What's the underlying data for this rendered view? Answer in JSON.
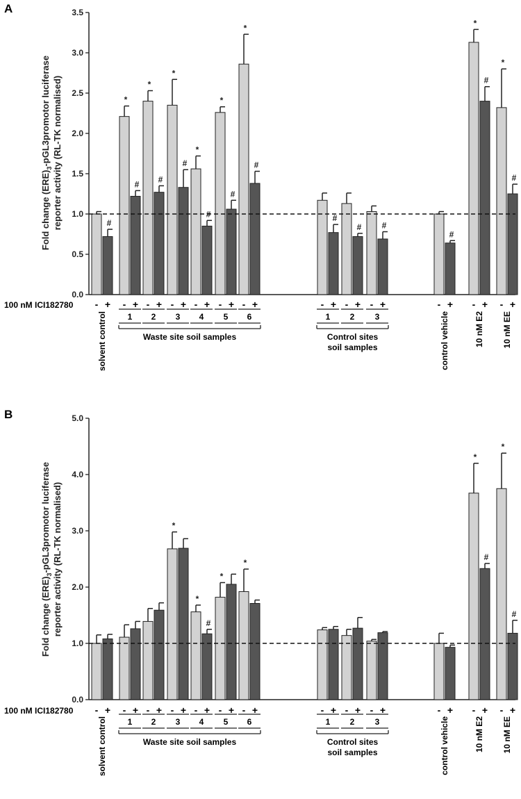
{
  "colors": {
    "light": "#d2d2d2",
    "dark": "#555555",
    "line": "#222222"
  },
  "chart_data": [
    {
      "type": "bar",
      "panel_label": "A",
      "ylabel_line1_pre": "Fold change (ERE)",
      "ylabel_sub": "3",
      "ylabel_line1_post": "-pGL3promotor luciferase",
      "ylabel_line2": "reporter  activity (RL-TK normalised)",
      "ylim": [
        0,
        3.5
      ],
      "ticks": [
        "0.0",
        "0.5",
        "1.0",
        "1.5",
        "2.0",
        "2.5",
        "3.0",
        "3.5"
      ],
      "tick_values": [
        0,
        0.5,
        1,
        1.5,
        2,
        2.5,
        3,
        3.5
      ],
      "reference_line": 1.0,
      "treatment_label": "100 nM ICI182780",
      "legend_minus": "-",
      "legend_plus": "+",
      "samples": [
        {
          "label": "solvent control",
          "minus": 1.0,
          "minus_err": 0.03,
          "plus": 0.72,
          "plus_err": 0.09,
          "minus_mark": "",
          "plus_mark": "#"
        },
        {
          "label": "1",
          "minus": 2.21,
          "minus_err": 0.13,
          "plus": 1.22,
          "plus_err": 0.07,
          "minus_mark": "*",
          "plus_mark": "#"
        },
        {
          "label": "2",
          "minus": 2.4,
          "minus_err": 0.13,
          "plus": 1.27,
          "plus_err": 0.08,
          "minus_mark": "*",
          "plus_mark": "#"
        },
        {
          "label": "3",
          "minus": 2.35,
          "minus_err": 0.32,
          "plus": 1.33,
          "plus_err": 0.22,
          "minus_mark": "*",
          "plus_mark": "#"
        },
        {
          "label": "4",
          "minus": 1.56,
          "minus_err": 0.16,
          "plus": 0.85,
          "plus_err": 0.07,
          "minus_mark": "*",
          "plus_mark": "#"
        },
        {
          "label": "5",
          "minus": 2.26,
          "minus_err": 0.07,
          "plus": 1.06,
          "plus_err": 0.11,
          "minus_mark": "*",
          "plus_mark": "#"
        },
        {
          "label": "6",
          "minus": 2.86,
          "minus_err": 0.37,
          "plus": 1.38,
          "plus_err": 0.15,
          "minus_mark": "*",
          "plus_mark": "#"
        },
        {
          "label": "1",
          "minus": 1.17,
          "minus_err": 0.09,
          "plus": 0.77,
          "plus_err": 0.1,
          "minus_mark": "",
          "plus_mark": "#"
        },
        {
          "label": "2",
          "minus": 1.13,
          "minus_err": 0.13,
          "plus": 0.72,
          "plus_err": 0.04,
          "minus_mark": "",
          "plus_mark": "#"
        },
        {
          "label": "3",
          "minus": 1.03,
          "minus_err": 0.07,
          "plus": 0.69,
          "plus_err": 0.09,
          "minus_mark": "",
          "plus_mark": "#"
        },
        {
          "label": "control vehicle",
          "minus": 1.0,
          "minus_err": 0.03,
          "plus": 0.64,
          "plus_err": 0.03,
          "minus_mark": "",
          "plus_mark": "#"
        },
        {
          "label": "10 nM E2",
          "minus": 3.13,
          "minus_err": 0.16,
          "plus": 2.4,
          "plus_err": 0.18,
          "minus_mark": "*",
          "plus_mark": "#"
        },
        {
          "label": "10 nM EE",
          "minus": 2.32,
          "minus_err": 0.48,
          "plus": 1.25,
          "plus_err": 0.12,
          "minus_mark": "*",
          "plus_mark": "#"
        }
      ],
      "groups": [
        {
          "label": "Waste site soil samples"
        },
        {
          "label_line1": "Control sites",
          "label_line2": "soil samples"
        }
      ]
    },
    {
      "type": "bar",
      "panel_label": "B",
      "ylabel_line1_pre": "Fold change (ERE)",
      "ylabel_sub": "3",
      "ylabel_line1_post": "-pGL3promotor luciferase",
      "ylabel_line2": "reporter  activity (RL-TK normalised)",
      "ylim": [
        0,
        5
      ],
      "ticks": [
        "0.0",
        "1.0",
        "2.0",
        "3.0",
        "4.0",
        "5.0"
      ],
      "tick_values": [
        0,
        1,
        2,
        3,
        4,
        5
      ],
      "reference_line": 1.0,
      "treatment_label": "100 nM ICI182780",
      "legend_minus": "-",
      "legend_plus": "+",
      "samples": [
        {
          "label": "solvent control",
          "minus": 1.0,
          "minus_err": 0.15,
          "plus": 1.08,
          "plus_err": 0.08,
          "minus_mark": "",
          "plus_mark": ""
        },
        {
          "label": "1",
          "minus": 1.11,
          "minus_err": 0.22,
          "plus": 1.26,
          "plus_err": 0.13,
          "minus_mark": "",
          "plus_mark": ""
        },
        {
          "label": "2",
          "minus": 1.39,
          "minus_err": 0.23,
          "plus": 1.59,
          "plus_err": 0.13,
          "minus_mark": "",
          "plus_mark": ""
        },
        {
          "label": "3",
          "minus": 2.68,
          "minus_err": 0.3,
          "plus": 2.69,
          "plus_err": 0.17,
          "minus_mark": "*",
          "plus_mark": ""
        },
        {
          "label": "4",
          "minus": 1.56,
          "minus_err": 0.12,
          "plus": 1.17,
          "plus_err": 0.08,
          "minus_mark": "*",
          "plus_mark": "#"
        },
        {
          "label": "5",
          "minus": 1.82,
          "minus_err": 0.26,
          "plus": 2.05,
          "plus_err": 0.18,
          "minus_mark": "*",
          "plus_mark": ""
        },
        {
          "label": "6",
          "minus": 1.92,
          "minus_err": 0.4,
          "plus": 1.71,
          "plus_err": 0.06,
          "minus_mark": "*",
          "plus_mark": ""
        },
        {
          "label": "1",
          "minus": 1.24,
          "minus_err": 0.04,
          "plus": 1.25,
          "plus_err": 0.05,
          "minus_mark": "",
          "plus_mark": ""
        },
        {
          "label": "2",
          "minus": 1.14,
          "minus_err": 0.11,
          "plus": 1.27,
          "plus_err": 0.19,
          "minus_mark": "",
          "plus_mark": ""
        },
        {
          "label": "3",
          "minus": 1.04,
          "minus_err": 0.03,
          "plus": 1.19,
          "plus_err": 0.02,
          "minus_mark": "",
          "plus_mark": ""
        },
        {
          "label": "control vehicle",
          "minus": 1.0,
          "minus_err": 0.18,
          "plus": 0.93,
          "plus_err": 0.04,
          "minus_mark": "",
          "plus_mark": ""
        },
        {
          "label": "10 nM E2",
          "minus": 3.67,
          "minus_err": 0.53,
          "plus": 2.33,
          "plus_err": 0.09,
          "minus_mark": "*",
          "plus_mark": "#"
        },
        {
          "label": "10 nM EE",
          "minus": 3.75,
          "minus_err": 0.63,
          "plus": 1.18,
          "plus_err": 0.23,
          "minus_mark": "*",
          "plus_mark": "#"
        }
      ],
      "groups": [
        {
          "label": "Waste site soil samples"
        },
        {
          "label_line1": "Control sites",
          "label_line2": "soil samples"
        }
      ]
    }
  ]
}
